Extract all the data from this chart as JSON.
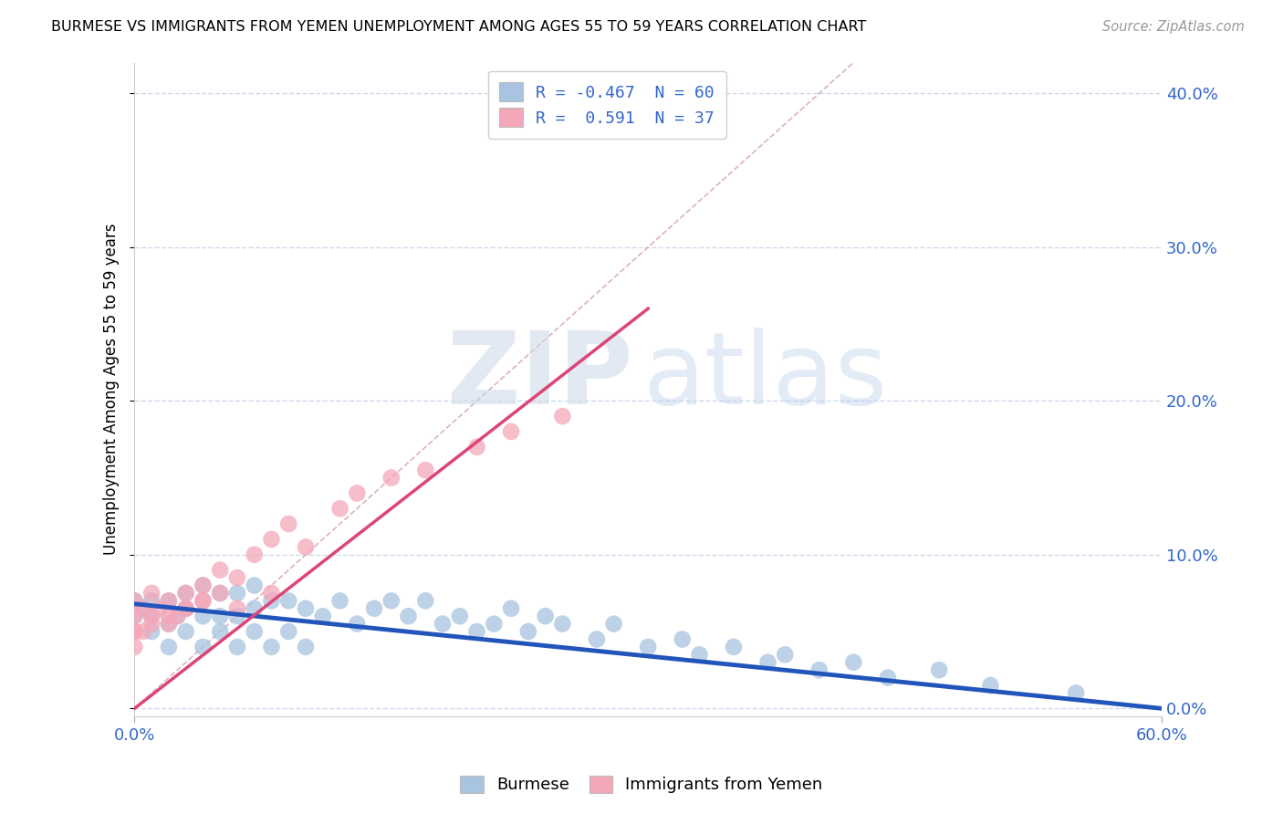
{
  "title": "BURMESE VS IMMIGRANTS FROM YEMEN UNEMPLOYMENT AMONG AGES 55 TO 59 YEARS CORRELATION CHART",
  "source": "Source: ZipAtlas.com",
  "ylabel": "Unemployment Among Ages 55 to 59 years",
  "yticks": [
    "0.0%",
    "10.0%",
    "20.0%",
    "30.0%",
    "40.0%"
  ],
  "ytick_vals": [
    0.0,
    0.1,
    0.2,
    0.3,
    0.4
  ],
  "xrange": [
    0.0,
    0.6
  ],
  "yrange": [
    -0.005,
    0.42
  ],
  "legend_R1": "-0.467",
  "legend_N1": "60",
  "legend_R2": "0.591",
  "legend_N2": "37",
  "blue_color": "#a8c4e0",
  "pink_color": "#f4a7b9",
  "blue_line_color": "#2255bb",
  "pink_line_color": "#dd4477",
  "diag_line_color": "#d0a0b0",
  "blue_regression": [
    0.0,
    0.6,
    0.068,
    0.0
  ],
  "pink_regression": [
    0.0,
    0.3,
    0.0,
    0.26
  ],
  "blue_scatter_x": [
    0.0,
    0.0,
    0.005,
    0.01,
    0.01,
    0.01,
    0.02,
    0.02,
    0.02,
    0.025,
    0.03,
    0.03,
    0.03,
    0.04,
    0.04,
    0.04,
    0.05,
    0.05,
    0.05,
    0.06,
    0.06,
    0.06,
    0.07,
    0.07,
    0.07,
    0.08,
    0.08,
    0.09,
    0.09,
    0.1,
    0.1,
    0.11,
    0.12,
    0.13,
    0.14,
    0.15,
    0.16,
    0.17,
    0.18,
    0.19,
    0.2,
    0.21,
    0.22,
    0.23,
    0.24,
    0.25,
    0.27,
    0.28,
    0.3,
    0.32,
    0.33,
    0.35,
    0.37,
    0.38,
    0.4,
    0.42,
    0.44,
    0.47,
    0.5,
    0.55
  ],
  "blue_scatter_y": [
    0.06,
    0.07,
    0.065,
    0.05,
    0.06,
    0.07,
    0.04,
    0.055,
    0.07,
    0.06,
    0.05,
    0.065,
    0.075,
    0.04,
    0.06,
    0.08,
    0.05,
    0.06,
    0.075,
    0.04,
    0.06,
    0.075,
    0.05,
    0.065,
    0.08,
    0.04,
    0.07,
    0.05,
    0.07,
    0.04,
    0.065,
    0.06,
    0.07,
    0.055,
    0.065,
    0.07,
    0.06,
    0.07,
    0.055,
    0.06,
    0.05,
    0.055,
    0.065,
    0.05,
    0.06,
    0.055,
    0.045,
    0.055,
    0.04,
    0.045,
    0.035,
    0.04,
    0.03,
    0.035,
    0.025,
    0.03,
    0.02,
    0.025,
    0.015,
    0.01
  ],
  "pink_scatter_x": [
    0.0,
    0.0,
    0.0,
    0.005,
    0.005,
    0.01,
    0.01,
    0.015,
    0.02,
    0.02,
    0.025,
    0.03,
    0.03,
    0.04,
    0.04,
    0.05,
    0.05,
    0.06,
    0.07,
    0.08,
    0.09,
    0.1,
    0.12,
    0.13,
    0.15,
    0.17,
    0.2,
    0.22,
    0.25,
    0.0,
    0.0,
    0.01,
    0.02,
    0.03,
    0.04,
    0.06,
    0.08
  ],
  "pink_scatter_y": [
    0.04,
    0.05,
    0.07,
    0.05,
    0.065,
    0.06,
    0.075,
    0.065,
    0.055,
    0.07,
    0.06,
    0.065,
    0.075,
    0.07,
    0.08,
    0.075,
    0.09,
    0.085,
    0.1,
    0.11,
    0.12,
    0.105,
    0.13,
    0.14,
    0.15,
    0.155,
    0.17,
    0.18,
    0.19,
    0.05,
    0.06,
    0.055,
    0.06,
    0.065,
    0.07,
    0.065,
    0.075
  ]
}
